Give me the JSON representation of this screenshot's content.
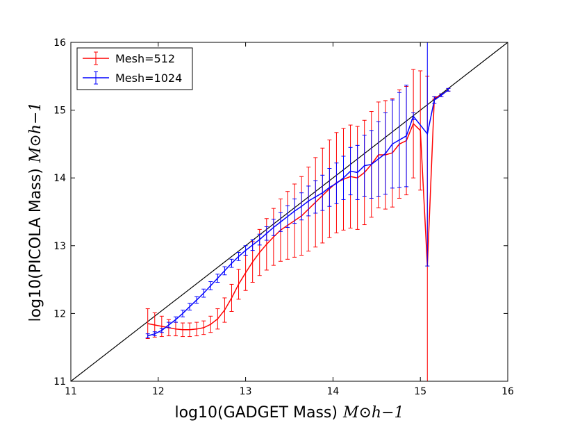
{
  "chart_data": {
    "type": "line",
    "xlabel": "log10(GADGET Mass)",
    "xlabel_unit": "M⊙h−1",
    "ylabel": "log10(PICOLA Mass)",
    "ylabel_unit": "M⊙h−1",
    "xlim": [
      11,
      16
    ],
    "ylim": [
      11,
      16
    ],
    "xticks": [
      11,
      12,
      13,
      14,
      15,
      16
    ],
    "yticks": [
      11,
      12,
      13,
      14,
      15,
      16
    ],
    "grid": false,
    "legend_position": "top-left",
    "reference_line": {
      "x": [
        11,
        16
      ],
      "y": [
        11,
        16
      ],
      "color": "#000000"
    },
    "series": [
      {
        "name": "Mesh=512",
        "color": "#ff0000",
        "x": [
          11.88,
          11.96,
          12.04,
          12.12,
          12.2,
          12.28,
          12.36,
          12.44,
          12.52,
          12.6,
          12.68,
          12.76,
          12.84,
          12.92,
          13.0,
          13.08,
          13.16,
          13.24,
          13.32,
          13.4,
          13.48,
          13.56,
          13.64,
          13.72,
          13.8,
          13.88,
          13.96,
          14.04,
          14.12,
          14.2,
          14.28,
          14.36,
          14.44,
          14.52,
          14.6,
          14.68,
          14.76,
          14.84,
          14.92,
          15.0,
          15.08,
          15.16,
          15.24,
          15.32
        ],
        "y": [
          11.85,
          11.83,
          11.81,
          11.79,
          11.77,
          11.76,
          11.76,
          11.77,
          11.79,
          11.84,
          11.92,
          12.05,
          12.23,
          12.43,
          12.6,
          12.76,
          12.9,
          13.02,
          13.13,
          13.23,
          13.3,
          13.37,
          13.44,
          13.54,
          13.64,
          13.74,
          13.84,
          13.93,
          13.98,
          14.02,
          14.0,
          14.08,
          14.2,
          14.34,
          14.34,
          14.37,
          14.5,
          14.55,
          14.8,
          14.7,
          12.7,
          15.18,
          15.22,
          15.3
        ],
        "err": [
          0.22,
          0.18,
          0.15,
          0.12,
          0.1,
          0.1,
          0.1,
          0.1,
          0.1,
          0.12,
          0.15,
          0.18,
          0.2,
          0.22,
          0.26,
          0.3,
          0.34,
          0.38,
          0.42,
          0.46,
          0.5,
          0.54,
          0.58,
          0.62,
          0.66,
          0.7,
          0.72,
          0.74,
          0.75,
          0.76,
          0.76,
          0.77,
          0.78,
          0.78,
          0.8,
          0.8,
          0.8,
          0.8,
          0.8,
          0.88,
          2.8,
          0.02,
          0.02,
          0.02
        ]
      },
      {
        "name": "Mesh=1024",
        "color": "#0000ff",
        "x": [
          11.88,
          11.96,
          12.04,
          12.12,
          12.2,
          12.28,
          12.36,
          12.44,
          12.52,
          12.6,
          12.68,
          12.76,
          12.84,
          12.92,
          13.0,
          13.08,
          13.16,
          13.24,
          13.32,
          13.4,
          13.48,
          13.56,
          13.64,
          13.72,
          13.8,
          13.88,
          13.96,
          14.04,
          14.12,
          14.2,
          14.28,
          14.36,
          14.44,
          14.52,
          14.6,
          14.68,
          14.76,
          14.84,
          14.92,
          15.08,
          15.16,
          15.24,
          15.32
        ],
        "y": [
          11.67,
          11.7,
          11.75,
          11.83,
          11.91,
          12.0,
          12.1,
          12.2,
          12.3,
          12.41,
          12.52,
          12.63,
          12.74,
          12.84,
          12.93,
          13.01,
          13.09,
          13.18,
          13.27,
          13.35,
          13.43,
          13.51,
          13.58,
          13.66,
          13.72,
          13.78,
          13.86,
          13.92,
          14.0,
          14.1,
          14.08,
          14.18,
          14.2,
          14.28,
          14.36,
          14.5,
          14.56,
          14.62,
          14.91,
          14.65,
          15.15,
          15.22,
          15.3
        ],
        "err": [
          0.03,
          0.03,
          0.03,
          0.04,
          0.04,
          0.05,
          0.05,
          0.05,
          0.06,
          0.06,
          0.06,
          0.06,
          0.06,
          0.06,
          0.07,
          0.08,
          0.08,
          0.1,
          0.12,
          0.14,
          0.16,
          0.18,
          0.2,
          0.22,
          0.24,
          0.26,
          0.28,
          0.3,
          0.32,
          0.35,
          0.4,
          0.45,
          0.5,
          0.55,
          0.6,
          0.65,
          0.7,
          0.75,
          0.05,
          1.95,
          0.05,
          0.02,
          0.02
        ]
      }
    ]
  }
}
